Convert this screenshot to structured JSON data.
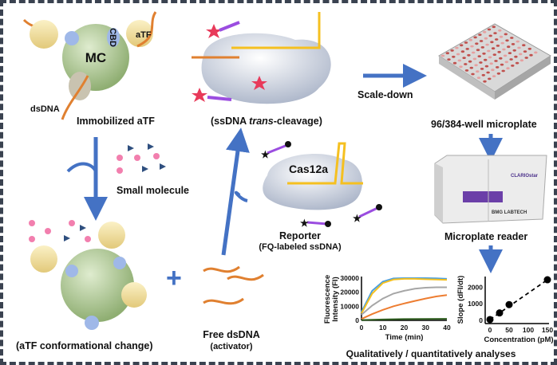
{
  "labels": {
    "mc": "MC",
    "cbd": "CBD",
    "atf": "aTF",
    "dsdna": "dsDNA",
    "immobilized": "Immobilized aTF",
    "small_molecule": "Small molecule",
    "conformational": "(aTF conformational change)",
    "free_dsdna": "Free dsDNA",
    "activator": "(activator)",
    "trans_prefix": "(ssDNA ",
    "trans_italic": "trans",
    "trans_suffix": "-cleavage)",
    "cas12a": "Cas12a",
    "reporter": "Reporter",
    "reporter_sub": "(FQ-labeled ssDNA)",
    "scale_down": "Scale-down",
    "microplate": "96/384-well microplate",
    "reader_brand": "CLARIOstar",
    "reader_maker": "BMG LABTECH",
    "reader": "Microplate reader",
    "analyses": "Qualitatively / quantitatively analyses"
  },
  "colors": {
    "arrow": "#4472c4",
    "mc": "#a9c48e",
    "atf": "#f4e3a1",
    "reporter": "#9b4de0",
    "plus": "#4472c4"
  },
  "chart_data": [
    {
      "type": "line",
      "xlabel": "Time (min)",
      "ylabel": "Fluorescence Intensity (FI)",
      "xlim": [
        0,
        40
      ],
      "ylim": [
        0,
        30000
      ],
      "xticks": [
        "0",
        "10",
        "20",
        "30",
        "40"
      ],
      "yticks": [
        "0",
        "10000",
        "20000",
        "30000"
      ],
      "series": [
        {
          "color": "#4a9fe0",
          "x": [
            0,
            5,
            10,
            15,
            20,
            25,
            30,
            35,
            40
          ],
          "y": [
            6000,
            21000,
            27500,
            29800,
            30000,
            30000,
            30000,
            29900,
            29500
          ]
        },
        {
          "color": "#f5c020",
          "x": [
            0,
            5,
            10,
            15,
            20,
            25,
            30,
            35,
            40
          ],
          "y": [
            5000,
            19000,
            26500,
            29000,
            29500,
            29500,
            29200,
            29000,
            28800
          ]
        },
        {
          "color": "#a6a6a6",
          "x": [
            0,
            5,
            10,
            15,
            20,
            25,
            30,
            35,
            40
          ],
          "y": [
            4000,
            10500,
            15500,
            19000,
            21000,
            22500,
            23200,
            23500,
            23500
          ]
        },
        {
          "color": "#ed7d31",
          "x": [
            0,
            5,
            10,
            15,
            20,
            25,
            30,
            35,
            40
          ],
          "y": [
            1000,
            4500,
            7500,
            10000,
            12000,
            13800,
            15500,
            17000,
            18000
          ]
        },
        {
          "color": "#2e5e1e",
          "x": [
            0,
            10,
            20,
            30,
            40
          ],
          "y": [
            200,
            600,
            900,
            1000,
            1100
          ]
        }
      ]
    },
    {
      "type": "scatter",
      "xlabel": "Concentration (pM)",
      "ylabel": "Slope (dFI/dt)",
      "xlim": [
        0,
        150
      ],
      "ylim": [
        0,
        2500
      ],
      "xticks": [
        "0",
        "50",
        "100",
        "150"
      ],
      "yticks": [
        "0",
        "1000",
        "2000"
      ],
      "x": [
        0,
        25,
        50,
        150
      ],
      "y": [
        50,
        450,
        950,
        2450
      ],
      "fit": "dashed linear"
    }
  ]
}
